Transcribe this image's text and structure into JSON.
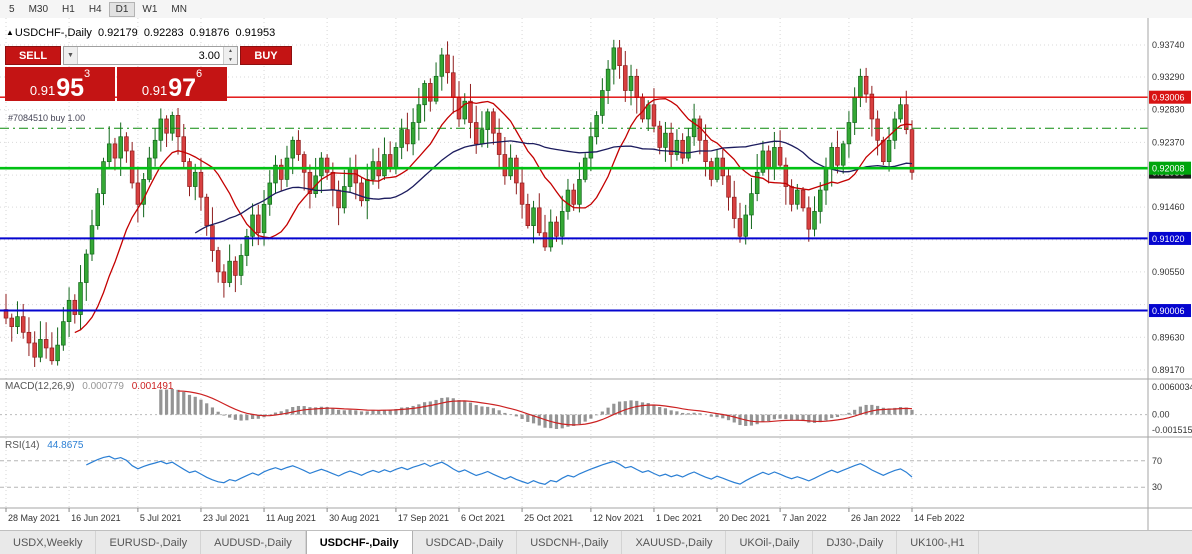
{
  "toolbar": {
    "timeframes": [
      "5",
      "M30",
      "H1",
      "H4",
      "D1",
      "W1",
      "MN"
    ],
    "active": "D1"
  },
  "header": {
    "collapse_icon": "▲",
    "symbol": "USDCHF-,Daily",
    "open": "0.92179",
    "high": "0.92283",
    "low": "0.91876",
    "close": "0.91953"
  },
  "trade_panel": {
    "sell_label": "SELL",
    "buy_label": "BUY",
    "volume": "3.00",
    "sell_price": {
      "big": "0.91",
      "pips": "95",
      "point": "3"
    },
    "buy_price": {
      "big": "0.91",
      "pips": "97",
      "point": "6"
    }
  },
  "position": {
    "label": "#7084510 buy 1.00"
  },
  "chart_data": {
    "type": "candlestick",
    "symbol": "USDCHF",
    "period": "Daily",
    "x_labels": [
      "28 May 2021",
      "16 Jun 2021",
      "5 Jul 2021",
      "23 Jul 2021",
      "11 Aug 2021",
      "30 Aug 2021",
      "17 Sep 2021",
      "6 Oct 2021",
      "25 Oct 2021",
      "12 Nov 2021",
      "1 Dec 2021",
      "20 Dec 2021",
      "7 Jan 2022",
      "26 Jan 2022",
      "14 Feb 2022"
    ],
    "closes": [
      0.899,
      0.8978,
      0.8992,
      0.897,
      0.8955,
      0.8935,
      0.896,
      0.8948,
      0.893,
      0.8952,
      0.8985,
      0.9015,
      0.8995,
      0.904,
      0.908,
      0.912,
      0.9165,
      0.921,
      0.9235,
      0.9215,
      0.9245,
      0.9225,
      0.918,
      0.915,
      0.9185,
      0.9215,
      0.924,
      0.927,
      0.925,
      0.9275,
      0.9245,
      0.921,
      0.9175,
      0.9195,
      0.916,
      0.912,
      0.9085,
      0.9055,
      0.904,
      0.907,
      0.905,
      0.9078,
      0.9105,
      0.9135,
      0.911,
      0.915,
      0.918,
      0.9205,
      0.9185,
      0.9215,
      0.924,
      0.922,
      0.9195,
      0.9165,
      0.919,
      0.9215,
      0.9195,
      0.917,
      0.9145,
      0.9175,
      0.92,
      0.918,
      0.9155,
      0.9185,
      0.921,
      0.919,
      0.922,
      0.92,
      0.923,
      0.9255,
      0.9235,
      0.9265,
      0.929,
      0.932,
      0.9295,
      0.933,
      0.936,
      0.9335,
      0.93,
      0.927,
      0.9295,
      0.9265,
      0.9235,
      0.9255,
      0.928,
      0.925,
      0.922,
      0.919,
      0.9215,
      0.918,
      0.915,
      0.912,
      0.9145,
      0.911,
      0.909,
      0.9125,
      0.9105,
      0.914,
      0.917,
      0.915,
      0.9185,
      0.9215,
      0.9245,
      0.9275,
      0.931,
      0.934,
      0.937,
      0.9345,
      0.931,
      0.933,
      0.93,
      0.927,
      0.929,
      0.926,
      0.923,
      0.925,
      0.922,
      0.924,
      0.9215,
      0.9245,
      0.927,
      0.924,
      0.921,
      0.9185,
      0.9215,
      0.919,
      0.916,
      0.913,
      0.9105,
      0.9135,
      0.9165,
      0.9195,
      0.9225,
      0.92,
      0.923,
      0.9205,
      0.9175,
      0.915,
      0.917,
      0.9145,
      0.9115,
      0.914,
      0.917,
      0.92,
      0.923,
      0.9205,
      0.9235,
      0.9265,
      0.93,
      0.933,
      0.9305,
      0.927,
      0.924,
      0.921,
      0.924,
      0.927,
      0.929,
      0.9255,
      0.9195
    ],
    "y_axis": {
      "ticks": [
        {
          "label": "0.93740",
          "value": 0.9374,
          "show": true
        },
        {
          "label": "0.93290",
          "value": 0.9329,
          "show": true
        },
        {
          "label": "0.92830",
          "value": 0.9283,
          "show": true
        },
        {
          "label": "0.92370",
          "value": 0.9237,
          "show": true
        },
        {
          "label": "0.91910",
          "value": 0.9191,
          "show": false
        },
        {
          "label": "0.91460",
          "value": 0.9146,
          "show": true
        },
        {
          "label": "0.91000",
          "value": 0.91,
          "show": false
        },
        {
          "label": "0.90550",
          "value": 0.9055,
          "show": true
        },
        {
          "label": "0.90090",
          "value": 0.9009,
          "show": false
        },
        {
          "label": "0.89630",
          "value": 0.8963,
          "show": true
        },
        {
          "label": "0.89170",
          "value": 0.8917,
          "show": true
        }
      ]
    },
    "levels": [
      {
        "id": "resistance-red",
        "value": 0.93006,
        "label": "0.93006",
        "color": "#e00000",
        "bg": "#d81313",
        "width": 1.4,
        "dash": null
      },
      {
        "id": "position-open",
        "value": 0.9257,
        "label": null,
        "color": "#0a8a0a",
        "bg": null,
        "width": 1,
        "dash": "9 4 2 4"
      },
      {
        "id": "support-green",
        "value": 0.92008,
        "label": "0.92008",
        "color": "#00c113",
        "bg": "#00a50d",
        "width": 2.6,
        "dash": null
      },
      {
        "id": "support-blue-1",
        "value": 0.9102,
        "label": "0.91020",
        "color": "#0505cf",
        "bg": "#0505cf",
        "width": 2,
        "dash": null
      },
      {
        "id": "support-blue-2",
        "value": 0.90006,
        "label": "0.90006",
        "color": "#0505cf",
        "bg": "#0505cf",
        "width": 2,
        "dash": null
      }
    ],
    "current_price": {
      "value": 0.91953,
      "label": "0.91953",
      "bg": "#1a1a1a"
    },
    "moving_averages": [
      {
        "period": 13,
        "color": "#c40000"
      },
      {
        "period": 34,
        "color": "#1c1c5e"
      }
    ],
    "indicators": {
      "macd": {
        "name": "MACD(12,26,9)",
        "value": "0.000779",
        "signal_value": "0.001491",
        "axis_top": "0.0060034",
        "axis_zero": "0.00",
        "axis_bottom": "-0.0015150",
        "histogram_color": "#949494",
        "signal_color": "#cc2222"
      },
      "rsi": {
        "name": "RSI(14)",
        "value": "44.8675",
        "upper_level": "70",
        "lower_level": "30",
        "line_color": "#2b7fd4"
      }
    },
    "candle_up_color": "#35a835",
    "candle_down_color": "#d84040"
  },
  "tabs": {
    "items": [
      "USDX,Weekly",
      "EURUSD-,Daily",
      "AUDUSD-,Daily",
      "USDCHF-,Daily",
      "USDCAD-,Daily",
      "USDCNH-,Daily",
      "XAUUSD-,Daily",
      "UKOil-,Daily",
      "DJ30-,Daily",
      "UK100-,H1"
    ],
    "active_index": 3
  }
}
